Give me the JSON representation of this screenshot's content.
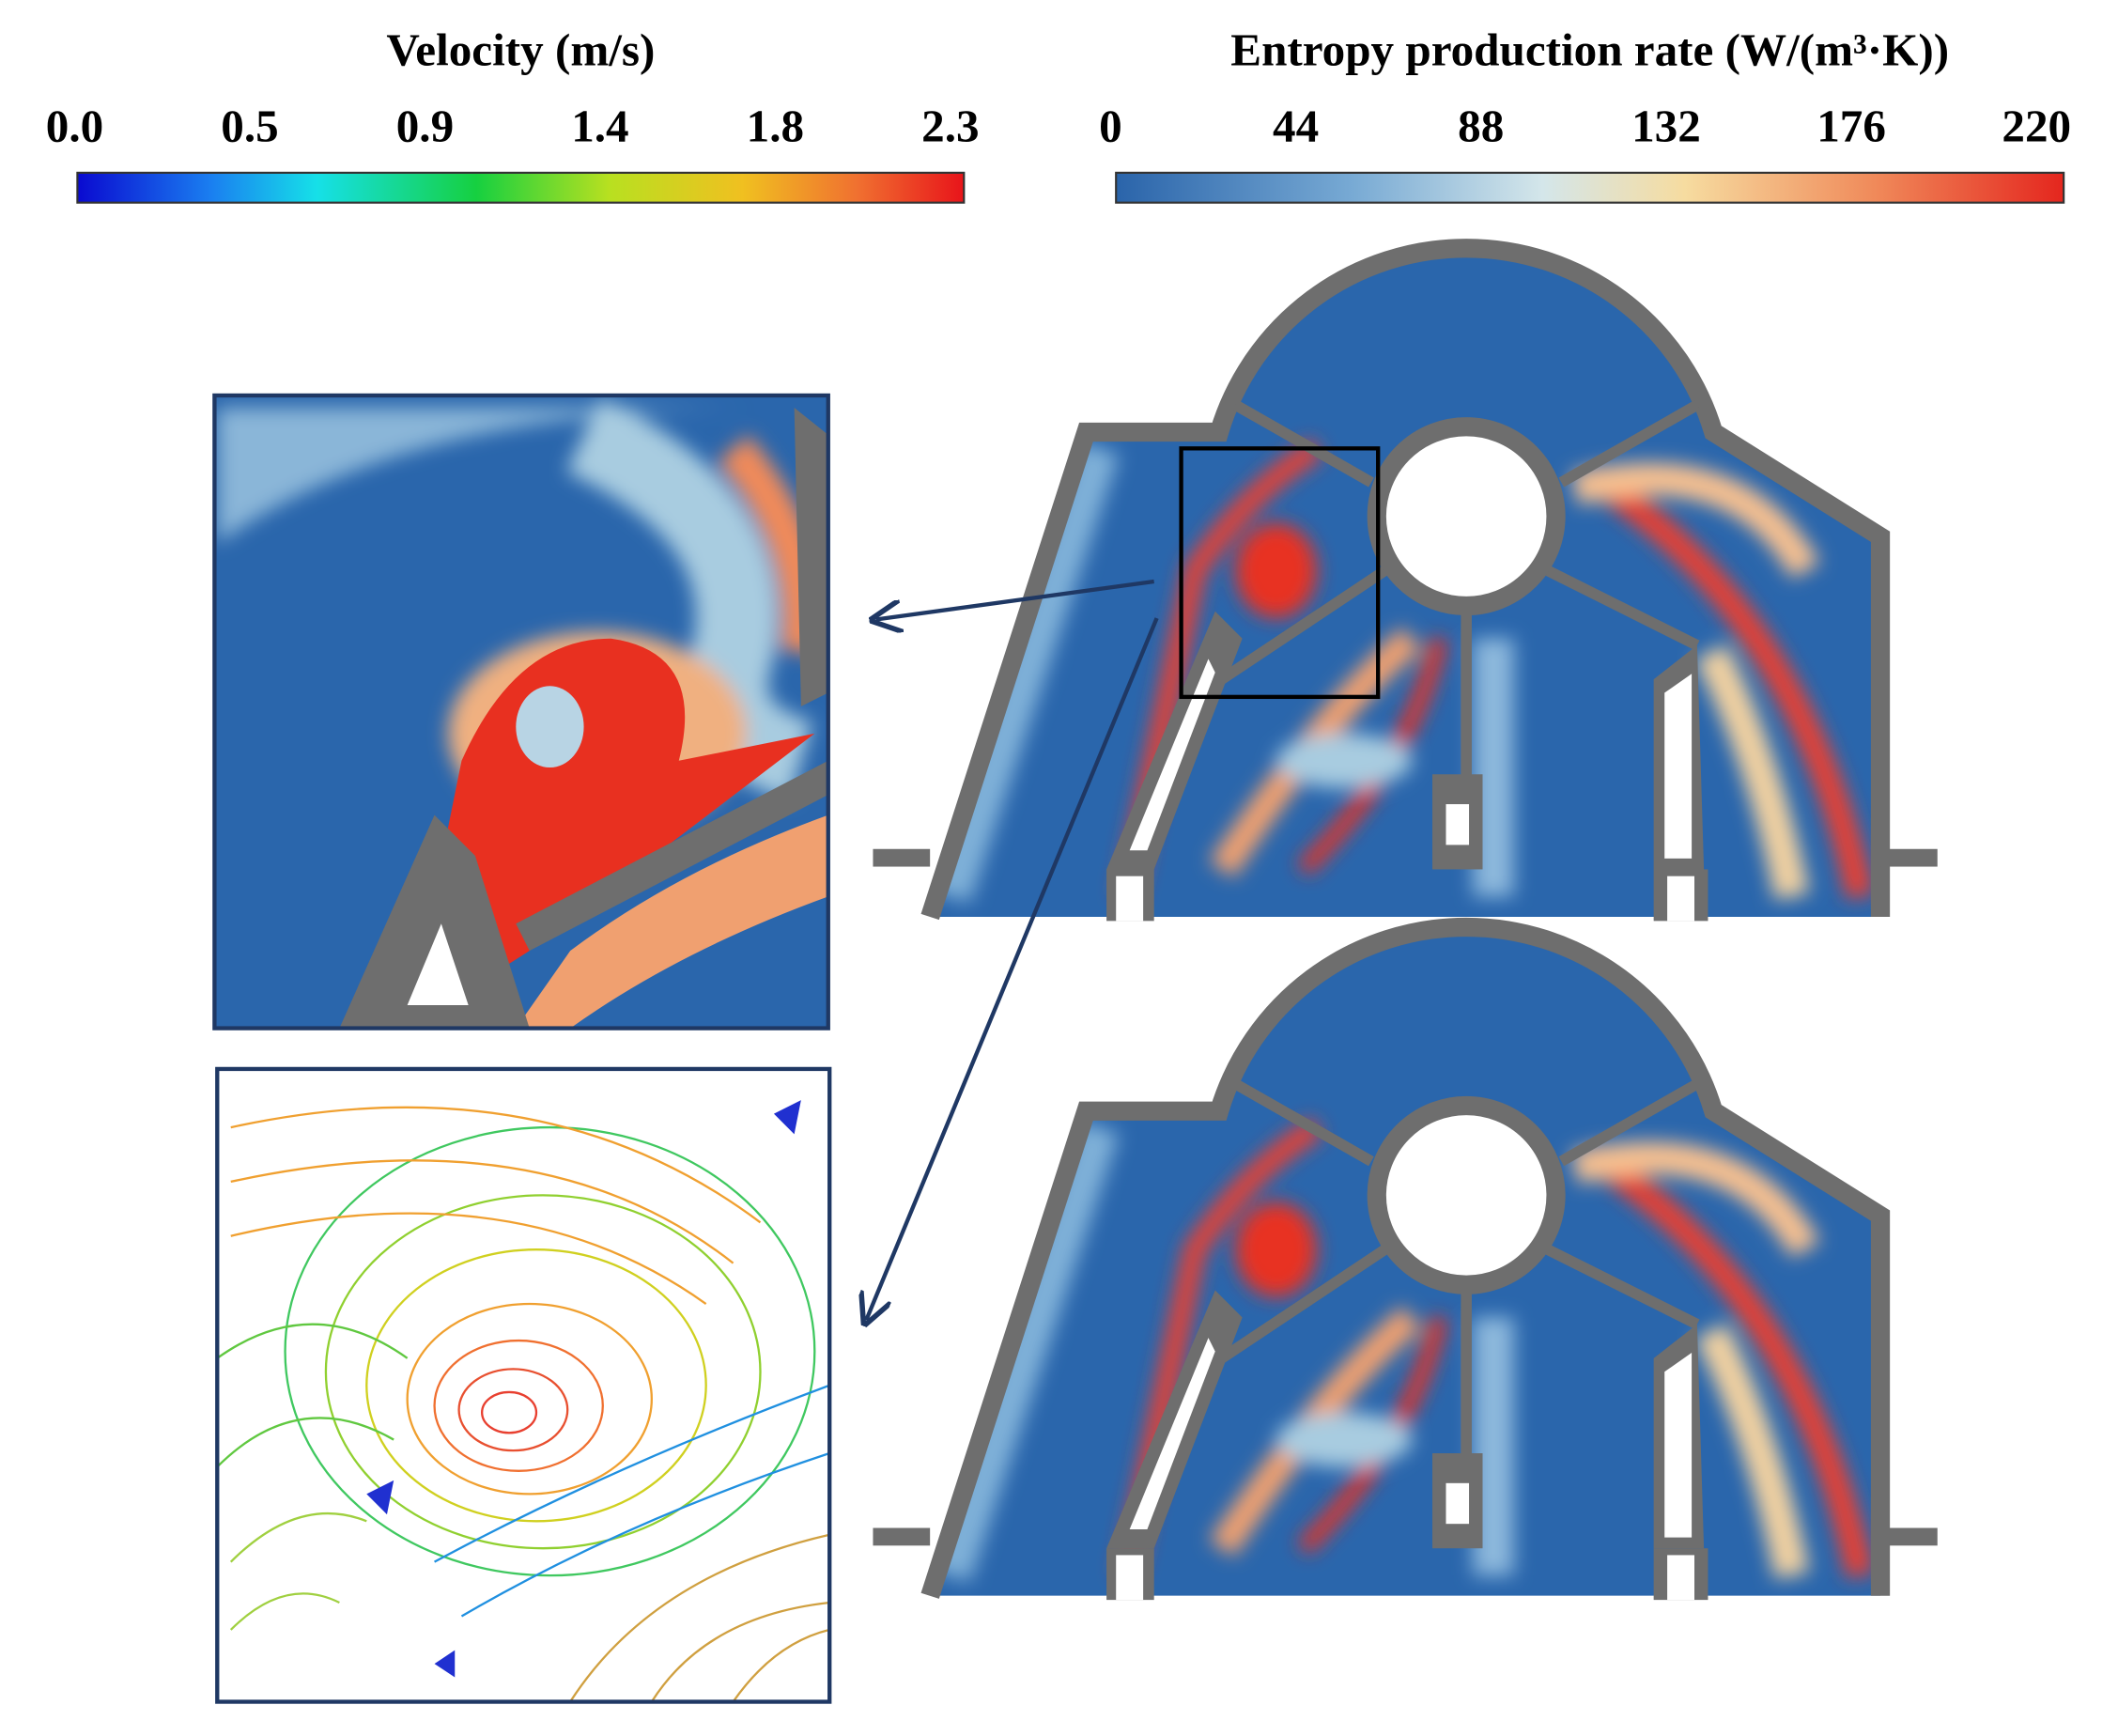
{
  "colorbars": [
    {
      "title": "Velocity (m/s)",
      "ticks": [
        "0.0",
        "0.5",
        "0.9",
        "1.4",
        "1.8",
        "2.3"
      ]
    },
    {
      "title": "Entropy production rate (W/(m³·K))",
      "ticks": [
        "0",
        "44",
        "88",
        "132",
        "176",
        "220"
      ]
    }
  ]
}
